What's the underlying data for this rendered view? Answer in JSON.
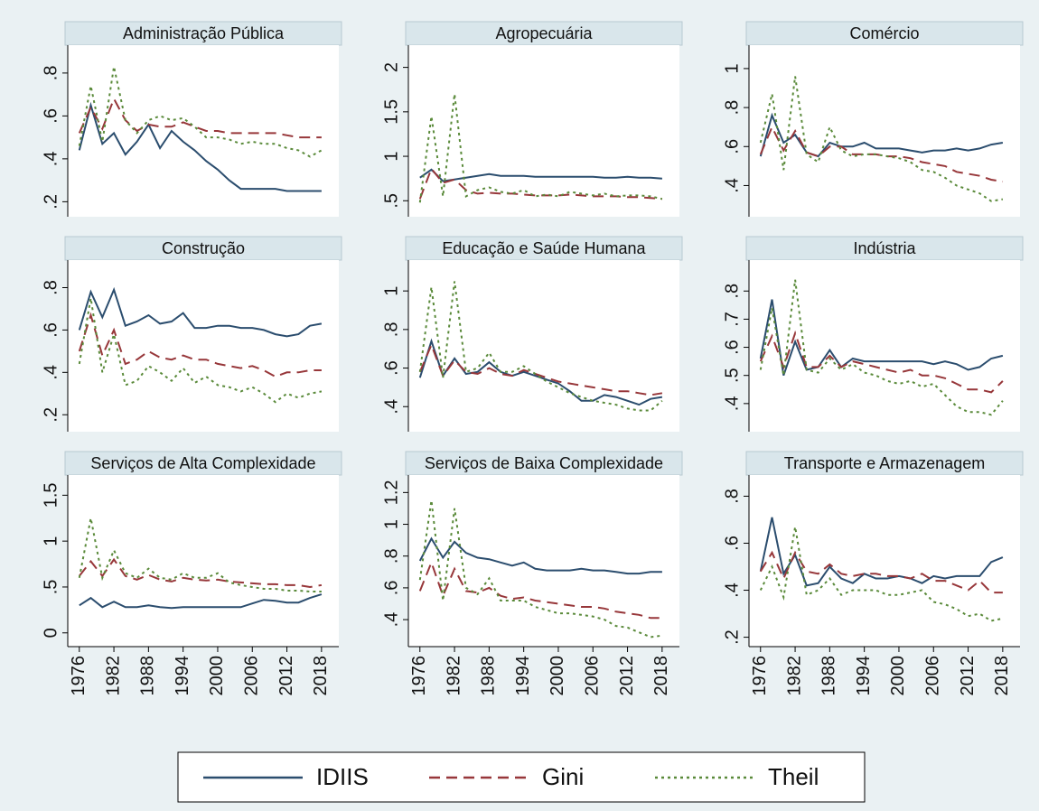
{
  "chart_data": [
    {
      "type": "line",
      "title": "Administração Pública",
      "x": [
        1976,
        1978,
        1980,
        1982,
        1984,
        1986,
        1988,
        1990,
        1992,
        1994,
        1996,
        1998,
        2000,
        2002,
        2004,
        2006,
        2008,
        2010,
        2012,
        2014,
        2016,
        2018
      ],
      "xlim": [
        1974,
        2021
      ],
      "ylim": [
        0.13,
        0.93
      ],
      "yticks": [
        {
          "value": 0.2,
          "label": ".2"
        },
        {
          "value": 0.4,
          "label": ".4"
        },
        {
          "value": 0.6,
          "label": ".6"
        },
        {
          "value": 0.8,
          "label": ".8"
        }
      ],
      "series": [
        {
          "values": [
            0.44,
            0.65,
            0.47,
            0.52,
            0.42,
            0.48,
            0.56,
            0.45,
            0.53,
            0.48,
            0.44,
            0.39,
            0.35,
            0.3,
            0.26,
            0.26,
            0.26,
            0.26,
            0.25,
            0.25,
            0.25,
            0.25
          ]
        },
        {
          "values": [
            0.52,
            0.64,
            0.54,
            0.68,
            0.58,
            0.53,
            0.56,
            0.55,
            0.55,
            0.57,
            0.55,
            0.53,
            0.53,
            0.52,
            0.52,
            0.52,
            0.52,
            0.52,
            0.51,
            0.5,
            0.5,
            0.5
          ]
        },
        {
          "values": [
            0.46,
            0.74,
            0.48,
            0.83,
            0.58,
            0.52,
            0.58,
            0.6,
            0.58,
            0.59,
            0.55,
            0.5,
            0.5,
            0.49,
            0.47,
            0.48,
            0.47,
            0.47,
            0.45,
            0.44,
            0.41,
            0.44
          ]
        }
      ]
    },
    {
      "type": "line",
      "title": "Agropecuária",
      "x": [
        1976,
        1978,
        1980,
        1982,
        1984,
        1986,
        1988,
        1990,
        1992,
        1994,
        1996,
        1998,
        2000,
        2002,
        2004,
        2006,
        2008,
        2010,
        2012,
        2014,
        2016,
        2018
      ],
      "xlim": [
        1974,
        2021
      ],
      "ylim": [
        0.32,
        2.25
      ],
      "yticks": [
        {
          "value": 0.5,
          "label": ".5"
        },
        1,
        1.5,
        2
      ],
      "series": [
        {
          "values": [
            0.76,
            0.85,
            0.72,
            0.74,
            0.76,
            0.78,
            0.8,
            0.78,
            0.78,
            0.78,
            0.77,
            0.77,
            0.77,
            0.77,
            0.77,
            0.77,
            0.76,
            0.76,
            0.77,
            0.76,
            0.76,
            0.75
          ]
        },
        {
          "values": [
            0.52,
            0.86,
            0.7,
            0.74,
            0.62,
            0.58,
            0.59,
            0.58,
            0.58,
            0.57,
            0.56,
            0.56,
            0.56,
            0.57,
            0.56,
            0.55,
            0.55,
            0.55,
            0.54,
            0.54,
            0.53,
            0.52
          ]
        },
        {
          "values": [
            0.48,
            1.45,
            0.55,
            1.7,
            0.55,
            0.62,
            0.65,
            0.6,
            0.58,
            0.62,
            0.55,
            0.57,
            0.55,
            0.6,
            0.58,
            0.56,
            0.58,
            0.55,
            0.56,
            0.56,
            0.55,
            0.52
          ]
        }
      ]
    },
    {
      "type": "line",
      "title": "Comércio",
      "x": [
        1976,
        1978,
        1980,
        1982,
        1984,
        1986,
        1988,
        1990,
        1992,
        1994,
        1996,
        1998,
        2000,
        2002,
        2004,
        2006,
        2008,
        2010,
        2012,
        2014,
        2016,
        2018
      ],
      "xlim": [
        1974,
        2021
      ],
      "ylim": [
        0.24,
        1.12
      ],
      "yticks": [
        {
          "value": 0.4,
          "label": ".4"
        },
        {
          "value": 0.6,
          "label": ".6"
        },
        {
          "value": 0.8,
          "label": ".8"
        },
        1
      ],
      "series": [
        {
          "values": [
            0.55,
            0.76,
            0.62,
            0.66,
            0.57,
            0.55,
            0.62,
            0.6,
            0.6,
            0.62,
            0.59,
            0.59,
            0.59,
            0.58,
            0.57,
            0.58,
            0.58,
            0.59,
            0.58,
            0.59,
            0.61,
            0.62
          ]
        },
        {
          "values": [
            0.56,
            0.7,
            0.58,
            0.68,
            0.57,
            0.55,
            0.6,
            0.6,
            0.56,
            0.56,
            0.56,
            0.55,
            0.55,
            0.54,
            0.52,
            0.51,
            0.5,
            0.47,
            0.46,
            0.45,
            0.43,
            0.42
          ]
        },
        {
          "values": [
            0.62,
            0.87,
            0.48,
            0.96,
            0.56,
            0.52,
            0.7,
            0.58,
            0.55,
            0.56,
            0.56,
            0.55,
            0.54,
            0.52,
            0.48,
            0.47,
            0.44,
            0.4,
            0.38,
            0.36,
            0.32,
            0.33
          ]
        }
      ]
    },
    {
      "type": "line",
      "title": "Construção",
      "x": [
        1976,
        1978,
        1980,
        1982,
        1984,
        1986,
        1988,
        1990,
        1992,
        1994,
        1996,
        1998,
        2000,
        2002,
        2004,
        2006,
        2008,
        2010,
        2012,
        2014,
        2016,
        2018
      ],
      "xlim": [
        1974,
        2021
      ],
      "ylim": [
        0.12,
        0.93
      ],
      "yticks": [
        {
          "value": 0.2,
          "label": ".2"
        },
        {
          "value": 0.4,
          "label": ".4"
        },
        {
          "value": 0.6,
          "label": ".6"
        },
        {
          "value": 0.8,
          "label": ".8"
        }
      ],
      "series": [
        {
          "values": [
            0.6,
            0.78,
            0.66,
            0.79,
            0.62,
            0.64,
            0.67,
            0.63,
            0.64,
            0.68,
            0.61,
            0.61,
            0.62,
            0.62,
            0.61,
            0.61,
            0.6,
            0.58,
            0.57,
            0.58,
            0.62,
            0.63
          ]
        },
        {
          "values": [
            0.5,
            0.67,
            0.48,
            0.6,
            0.44,
            0.46,
            0.5,
            0.47,
            0.46,
            0.48,
            0.46,
            0.46,
            0.44,
            0.43,
            0.42,
            0.43,
            0.41,
            0.38,
            0.4,
            0.4,
            0.41,
            0.41
          ]
        },
        {
          "values": [
            0.44,
            0.75,
            0.4,
            0.58,
            0.34,
            0.36,
            0.43,
            0.4,
            0.36,
            0.42,
            0.35,
            0.38,
            0.34,
            0.33,
            0.31,
            0.33,
            0.3,
            0.26,
            0.3,
            0.28,
            0.3,
            0.31
          ]
        }
      ]
    },
    {
      "type": "line",
      "title": "Educação e Saúde Humana",
      "x": [
        1976,
        1978,
        1980,
        1982,
        1984,
        1986,
        1988,
        1990,
        1992,
        1994,
        1996,
        1998,
        2000,
        2002,
        2004,
        2006,
        2008,
        2010,
        2012,
        2014,
        2016,
        2018
      ],
      "xlim": [
        1974,
        2021
      ],
      "ylim": [
        0.27,
        1.16
      ],
      "yticks": [
        {
          "value": 0.4,
          "label": ".4"
        },
        {
          "value": 0.6,
          "label": ".6"
        },
        {
          "value": 0.8,
          "label": ".8"
        },
        1
      ],
      "series": [
        {
          "values": [
            0.55,
            0.74,
            0.56,
            0.65,
            0.57,
            0.58,
            0.63,
            0.58,
            0.56,
            0.58,
            0.56,
            0.54,
            0.52,
            0.48,
            0.43,
            0.43,
            0.46,
            0.45,
            0.43,
            0.41,
            0.44,
            0.45
          ]
        },
        {
          "values": [
            0.58,
            0.72,
            0.56,
            0.64,
            0.58,
            0.57,
            0.6,
            0.57,
            0.56,
            0.59,
            0.57,
            0.55,
            0.53,
            0.52,
            0.51,
            0.5,
            0.49,
            0.48,
            0.48,
            0.47,
            0.46,
            0.47
          ]
        },
        {
          "values": [
            0.58,
            1.02,
            0.55,
            1.05,
            0.58,
            0.6,
            0.68,
            0.58,
            0.58,
            0.61,
            0.57,
            0.53,
            0.5,
            0.47,
            0.45,
            0.43,
            0.42,
            0.41,
            0.39,
            0.38,
            0.38,
            0.43
          ]
        }
      ]
    },
    {
      "type": "line",
      "title": "Indústria",
      "x": [
        1976,
        1978,
        1980,
        1982,
        1984,
        1986,
        1988,
        1990,
        1992,
        1994,
        1996,
        1998,
        2000,
        2002,
        2004,
        2006,
        2008,
        2010,
        2012,
        2014,
        2016,
        2018
      ],
      "xlim": [
        1974,
        2021
      ],
      "ylim": [
        0.3,
        0.91
      ],
      "yticks": [
        {
          "value": 0.4,
          "label": ".4"
        },
        {
          "value": 0.5,
          "label": ".5"
        },
        {
          "value": 0.6,
          "label": ".6"
        },
        {
          "value": 0.7,
          "label": ".7"
        },
        {
          "value": 0.8,
          "label": ".8"
        }
      ],
      "series": [
        {
          "values": [
            0.56,
            0.77,
            0.5,
            0.62,
            0.52,
            0.53,
            0.59,
            0.53,
            0.56,
            0.55,
            0.55,
            0.55,
            0.55,
            0.55,
            0.55,
            0.54,
            0.55,
            0.54,
            0.52,
            0.53,
            0.56,
            0.57
          ]
        },
        {
          "values": [
            0.55,
            0.64,
            0.53,
            0.65,
            0.53,
            0.53,
            0.57,
            0.53,
            0.55,
            0.54,
            0.53,
            0.52,
            0.51,
            0.52,
            0.5,
            0.5,
            0.49,
            0.47,
            0.45,
            0.45,
            0.44,
            0.48
          ]
        },
        {
          "values": [
            0.52,
            0.74,
            0.5,
            0.84,
            0.52,
            0.51,
            0.56,
            0.52,
            0.54,
            0.51,
            0.5,
            0.48,
            0.47,
            0.48,
            0.46,
            0.47,
            0.43,
            0.39,
            0.37,
            0.37,
            0.36,
            0.41
          ]
        }
      ]
    },
    {
      "type": "line",
      "title": "Serviços de Alta Complexidade",
      "x": [
        1976,
        1978,
        1980,
        1982,
        1984,
        1986,
        1988,
        1990,
        1992,
        1994,
        1996,
        1998,
        2000,
        2002,
        2004,
        2006,
        2008,
        2010,
        2012,
        2014,
        2016,
        2018
      ],
      "xlim": [
        1974,
        2021
      ],
      "xticks": [
        1976,
        1982,
        1988,
        1994,
        2000,
        2006,
        2012,
        2018
      ],
      "ylim": [
        -0.15,
        1.72
      ],
      "yticks": [
        0,
        {
          "value": 0.5,
          "label": ".5"
        },
        1,
        1.5
      ],
      "series": [
        {
          "values": [
            0.3,
            0.38,
            0.28,
            0.34,
            0.28,
            0.28,
            0.3,
            0.28,
            0.27,
            0.28,
            0.28,
            0.28,
            0.28,
            0.28,
            0.28,
            0.32,
            0.36,
            0.35,
            0.33,
            0.33,
            0.38,
            0.42
          ]
        },
        {
          "values": [
            0.62,
            0.78,
            0.62,
            0.8,
            0.62,
            0.58,
            0.63,
            0.58,
            0.56,
            0.6,
            0.58,
            0.57,
            0.58,
            0.56,
            0.55,
            0.54,
            0.53,
            0.53,
            0.52,
            0.52,
            0.5,
            0.52
          ]
        },
        {
          "values": [
            0.6,
            1.25,
            0.6,
            0.9,
            0.65,
            0.6,
            0.7,
            0.6,
            0.58,
            0.65,
            0.6,
            0.6,
            0.65,
            0.55,
            0.52,
            0.5,
            0.48,
            0.48,
            0.46,
            0.46,
            0.45,
            0.45
          ]
        }
      ]
    },
    {
      "type": "line",
      "title": "Serviços de Baixa Complexidade",
      "x": [
        1976,
        1978,
        1980,
        1982,
        1984,
        1986,
        1988,
        1990,
        1992,
        1994,
        1996,
        1998,
        2000,
        2002,
        2004,
        2006,
        2008,
        2010,
        2012,
        2014,
        2016,
        2018
      ],
      "xlim": [
        1974,
        2021
      ],
      "xticks": [
        1976,
        1982,
        1988,
        1994,
        2000,
        2006,
        2012,
        2018
      ],
      "ylim": [
        0.23,
        1.31
      ],
      "yticks": [
        {
          "value": 0.4,
          "label": ".4"
        },
        {
          "value": 0.6,
          "label": ".6"
        },
        {
          "value": 0.8,
          "label": ".8"
        },
        1,
        1.2
      ],
      "series": [
        {
          "values": [
            0.77,
            0.91,
            0.79,
            0.89,
            0.82,
            0.79,
            0.78,
            0.76,
            0.74,
            0.76,
            0.72,
            0.71,
            0.71,
            0.71,
            0.72,
            0.71,
            0.71,
            0.7,
            0.69,
            0.69,
            0.7,
            0.7
          ]
        },
        {
          "values": [
            0.58,
            0.76,
            0.55,
            0.72,
            0.58,
            0.57,
            0.6,
            0.55,
            0.53,
            0.54,
            0.52,
            0.51,
            0.5,
            0.49,
            0.48,
            0.48,
            0.47,
            0.45,
            0.44,
            0.43,
            0.41,
            0.41
          ]
        },
        {
          "values": [
            0.65,
            1.15,
            0.52,
            1.1,
            0.6,
            0.56,
            0.66,
            0.52,
            0.52,
            0.52,
            0.48,
            0.46,
            0.44,
            0.44,
            0.43,
            0.42,
            0.4,
            0.36,
            0.35,
            0.32,
            0.29,
            0.3
          ]
        }
      ]
    },
    {
      "type": "line",
      "title": "Transporte e Armazenagem",
      "x": [
        1976,
        1978,
        1980,
        1982,
        1984,
        1986,
        1988,
        1990,
        1992,
        1994,
        1996,
        1998,
        2000,
        2002,
        2004,
        2006,
        2008,
        2010,
        2012,
        2014,
        2016,
        2018
      ],
      "xlim": [
        1974,
        2021
      ],
      "xticks": [
        1976,
        1982,
        1988,
        1994,
        2000,
        2006,
        2012,
        2018
      ],
      "ylim": [
        0.16,
        0.89
      ],
      "yticks": [
        {
          "value": 0.2,
          "label": ".2"
        },
        {
          "value": 0.4,
          "label": ".4"
        },
        {
          "value": 0.6,
          "label": ".6"
        },
        {
          "value": 0.8,
          "label": ".8"
        }
      ],
      "series": [
        {
          "values": [
            0.48,
            0.71,
            0.47,
            0.55,
            0.42,
            0.43,
            0.5,
            0.45,
            0.43,
            0.47,
            0.45,
            0.45,
            0.46,
            0.45,
            0.43,
            0.46,
            0.45,
            0.46,
            0.46,
            0.46,
            0.52,
            0.54
          ]
        },
        {
          "values": [
            0.48,
            0.56,
            0.45,
            0.56,
            0.48,
            0.47,
            0.51,
            0.47,
            0.46,
            0.47,
            0.47,
            0.46,
            0.46,
            0.45,
            0.47,
            0.44,
            0.44,
            0.42,
            0.4,
            0.44,
            0.39,
            0.39
          ]
        },
        {
          "values": [
            0.4,
            0.5,
            0.37,
            0.67,
            0.38,
            0.4,
            0.45,
            0.38,
            0.4,
            0.4,
            0.4,
            0.38,
            0.38,
            0.39,
            0.4,
            0.35,
            0.34,
            0.32,
            0.29,
            0.3,
            0.27,
            0.28
          ]
        }
      ]
    }
  ],
  "legend": {
    "position": "bottom",
    "entries": [
      {
        "name": "IDIIS",
        "color": "#2b4d6e",
        "dash": "solid"
      },
      {
        "name": "Gini",
        "color": "#97373a",
        "dash": "dashed"
      },
      {
        "name": "Theil",
        "color": "#5a8a3a",
        "dash": "dotted"
      }
    ]
  }
}
